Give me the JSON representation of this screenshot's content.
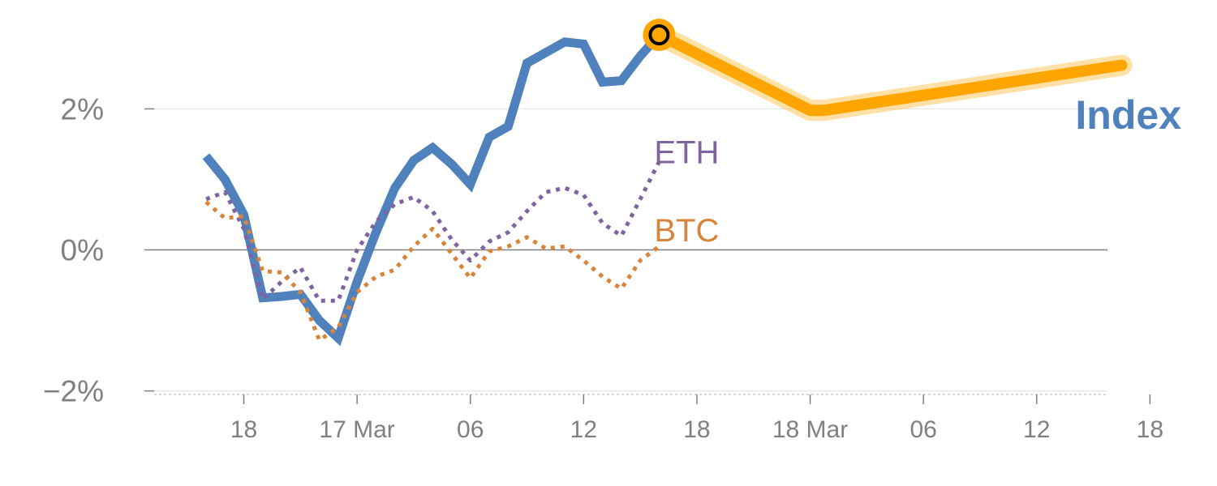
{
  "chart_data": {
    "type": "line",
    "y_unit": "%",
    "ylim": [
      -2.05,
      3.2
    ],
    "x_unit": "hours",
    "xlim": [
      -9.5,
      91.5
    ],
    "y_ticks": [
      {
        "value": 2,
        "label": "2%"
      },
      {
        "value": 0,
        "label": "0%"
      },
      {
        "value": -2,
        "label": "−2%"
      }
    ],
    "x_ticks": [
      {
        "value": 0,
        "label": "18"
      },
      {
        "value": 12,
        "label": "17 Mar"
      },
      {
        "value": 24,
        "label": "06"
      },
      {
        "value": 36,
        "label": "12"
      },
      {
        "value": 48,
        "label": "18"
      },
      {
        "value": 60,
        "label": "18 Mar"
      },
      {
        "value": 72,
        "label": "06"
      },
      {
        "value": 84,
        "label": "12"
      },
      {
        "value": 96,
        "label": "18"
      }
    ],
    "grid": true,
    "series": [
      {
        "name": "Index",
        "style": "solid",
        "color": "#4f81bd",
        "points": [
          [
            -4,
            1.33
          ],
          [
            -2,
            1.0
          ],
          [
            0,
            0.5
          ],
          [
            2,
            -0.68
          ],
          [
            4,
            -0.66
          ],
          [
            6,
            -0.63
          ],
          [
            8,
            -1.0
          ],
          [
            10,
            -1.25
          ],
          [
            12,
            -0.45
          ],
          [
            14,
            0.25
          ],
          [
            16,
            0.88
          ],
          [
            18,
            1.27
          ],
          [
            20,
            1.45
          ],
          [
            22,
            1.22
          ],
          [
            24,
            0.93
          ],
          [
            26,
            1.6
          ],
          [
            28,
            1.75
          ],
          [
            30,
            2.65
          ],
          [
            32,
            2.8
          ],
          [
            34,
            2.95
          ],
          [
            36,
            2.92
          ],
          [
            38,
            2.38
          ],
          [
            40,
            2.4
          ],
          [
            42,
            2.75
          ],
          [
            44,
            3.05
          ]
        ]
      },
      {
        "name": "ETH",
        "style": "dotted",
        "color": "#8064a2",
        "points": [
          [
            -4,
            0.72
          ],
          [
            -2,
            0.82
          ],
          [
            0,
            0.3
          ],
          [
            2,
            -0.7
          ],
          [
            4,
            -0.45
          ],
          [
            6,
            -0.25
          ],
          [
            8,
            -0.72
          ],
          [
            10,
            -0.72
          ],
          [
            12,
            0.0
          ],
          [
            14,
            0.4
          ],
          [
            16,
            0.65
          ],
          [
            18,
            0.75
          ],
          [
            20,
            0.55
          ],
          [
            22,
            0.15
          ],
          [
            24,
            -0.15
          ],
          [
            26,
            0.12
          ],
          [
            28,
            0.25
          ],
          [
            30,
            0.55
          ],
          [
            32,
            0.82
          ],
          [
            34,
            0.88
          ],
          [
            36,
            0.78
          ],
          [
            38,
            0.38
          ],
          [
            40,
            0.2
          ],
          [
            42,
            0.72
          ],
          [
            44,
            1.25
          ]
        ]
      },
      {
        "name": "BTC",
        "style": "dotted",
        "color": "#d9843b",
        "points": [
          [
            -4,
            0.68
          ],
          [
            -2,
            0.45
          ],
          [
            0,
            0.48
          ],
          [
            2,
            -0.3
          ],
          [
            4,
            -0.32
          ],
          [
            6,
            -0.6
          ],
          [
            8,
            -1.28
          ],
          [
            10,
            -1.1
          ],
          [
            12,
            -0.6
          ],
          [
            14,
            -0.38
          ],
          [
            16,
            -0.28
          ],
          [
            18,
            0.05
          ],
          [
            20,
            0.3
          ],
          [
            22,
            -0.05
          ],
          [
            24,
            -0.4
          ],
          [
            26,
            -0.02
          ],
          [
            28,
            0.05
          ],
          [
            30,
            0.18
          ],
          [
            32,
            0.02
          ],
          [
            34,
            0.05
          ],
          [
            36,
            -0.15
          ],
          [
            38,
            -0.38
          ],
          [
            40,
            -0.55
          ],
          [
            42,
            -0.15
          ],
          [
            44,
            0.05
          ]
        ]
      },
      {
        "name": "Index",
        "style": "projection",
        "color": "#ffa500",
        "points": [
          [
            44,
            3.05
          ],
          [
            60,
            1.98
          ],
          [
            61.5,
            1.98
          ],
          [
            93,
            2.62
          ]
        ]
      }
    ],
    "labels": {
      "index": "Index",
      "eth": "ETH",
      "btc": "BTC"
    },
    "colors": {
      "index": "#4f81bd",
      "eth": "#8064a2",
      "btc": "#d9843b",
      "projection": "#ffa500",
      "zero_line": "#808080",
      "grid": "#e6e6e6",
      "tick_text": "#808080"
    },
    "marker": {
      "x": 44,
      "y": 3.05
    }
  }
}
